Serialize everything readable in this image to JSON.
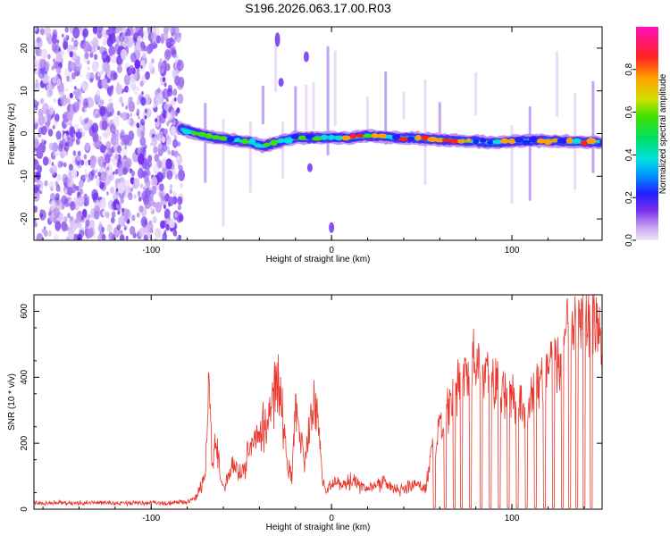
{
  "figure": {
    "title": "S196.2026.063.17.00.R03"
  },
  "chart_data": [
    {
      "type": "heatmap",
      "name": "spectrogram",
      "xlabel": "Height of straight line (km)",
      "ylabel": "Frequency (Hz)",
      "xlim": [
        -165,
        150
      ],
      "ylim": [
        -25,
        25
      ],
      "xticks": [
        -100,
        0,
        100
      ],
      "yticks": [
        -20,
        -10,
        0,
        10,
        20
      ],
      "colorbar": {
        "label": "Normalized spectral amplitude",
        "range": [
          0,
          1
        ],
        "ticks": [
          "0.0",
          "0.2",
          "0.4",
          "0.6",
          "0.8"
        ]
      },
      "ridge": {
        "x": [
          -83,
          -75,
          -65,
          -55,
          -45,
          -38,
          -30,
          -20,
          -10,
          0,
          10,
          20,
          30,
          40,
          50,
          60,
          70,
          80,
          90,
          100,
          110,
          120,
          130,
          140,
          148
        ],
        "frequency": [
          1,
          0,
          -1,
          -1.5,
          -2,
          -3,
          -2,
          -1,
          -1,
          -1,
          -1,
          -0.5,
          -0.8,
          -1,
          -1.2,
          -1.5,
          -1.6,
          -1.8,
          -2.2,
          -1.8,
          -1.7,
          -1.7,
          -1.8,
          -2,
          -2
        ]
      },
      "noise_region_x": [
        -165,
        -83
      ]
    },
    {
      "type": "line",
      "name": "snr",
      "xlabel": "Height of straight line (km)",
      "ylabel": "SNR (10 * v/v)",
      "xlim": [
        -165,
        150
      ],
      "ylim": [
        0,
        650
      ],
      "xticks": [
        -100,
        0,
        100
      ],
      "yticks": [
        0,
        200,
        400,
        600
      ],
      "color": "#e8362c",
      "series": [
        {
          "name": "SNR",
          "x": [
            -165,
            -150,
            -140,
            -130,
            -120,
            -110,
            -100,
            -90,
            -80,
            -75,
            -70,
            -68,
            -66,
            -65,
            -60,
            -55,
            -50,
            -45,
            -40,
            -35,
            -30,
            -25,
            -22,
            -20,
            -15,
            -12,
            -10,
            -8,
            -5,
            -3,
            0,
            5,
            10,
            15,
            20,
            25,
            30,
            35,
            40,
            45,
            50,
            52,
            55,
            58,
            60,
            65,
            70,
            75,
            80,
            85,
            90,
            95,
            100,
            105,
            110,
            115,
            120,
            125,
            130,
            135,
            140,
            145,
            150
          ],
          "y": [
            20,
            22,
            20,
            22,
            20,
            20,
            22,
            20,
            25,
            40,
            100,
            395,
            120,
            230,
            60,
            150,
            110,
            200,
            240,
            300,
            440,
            200,
            100,
            330,
            150,
            280,
            320,
            320,
            100,
            60,
            80,
            80,
            90,
            80,
            70,
            80,
            90,
            70,
            60,
            80,
            70,
            60,
            180,
            220,
            260,
            320,
            400,
            450,
            500,
            470,
            430,
            400,
            380,
            350,
            340,
            400,
            450,
            500,
            550,
            600,
            640,
            600,
            560
          ]
        }
      ]
    }
  ]
}
